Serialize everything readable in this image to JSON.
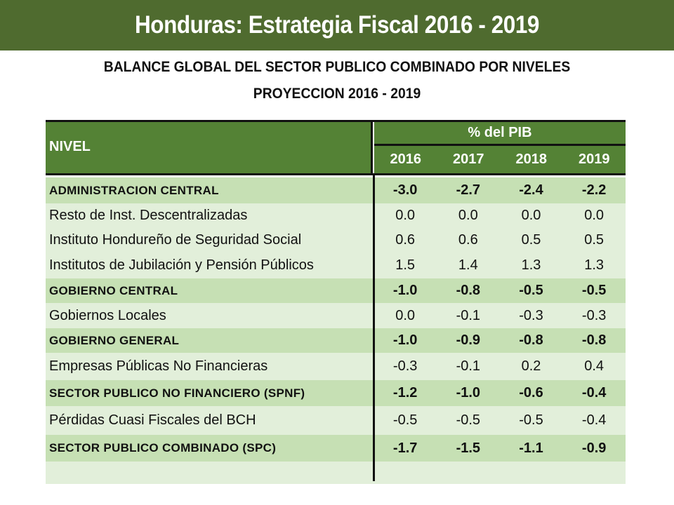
{
  "title": "Honduras: Estrategia Fiscal 2016 - 2019",
  "subtitle1": "BALANCE GLOBAL DEL SECTOR PUBLICO COMBINADO POR NIVELES",
  "subtitle2": "PROYECCION 2016 - 2019",
  "table": {
    "level_header": "NIVEL",
    "pib_header": "% del PIB",
    "years": [
      "2016",
      "2017",
      "2018",
      "2019"
    ],
    "rows": [
      {
        "label": "ADMINISTRACION CENTRAL",
        "bold": true,
        "values": [
          "-3.0",
          "-2.7",
          "-2.4",
          "-2.2"
        ]
      },
      {
        "label": "Resto de Inst. Descentralizadas",
        "bold": false,
        "values": [
          "0.0",
          "0.0",
          "0.0",
          "0.0"
        ]
      },
      {
        "label": "Instituto Hondureño de Seguridad Social",
        "bold": false,
        "values": [
          "0.6",
          "0.6",
          "0.5",
          "0.5"
        ]
      },
      {
        "label": "Institutos de Jubilación y Pensión Públicos",
        "bold": false,
        "values": [
          "1.5",
          "1.4",
          "1.3",
          "1.3"
        ]
      },
      {
        "label": "GOBIERNO CENTRAL",
        "bold": true,
        "values": [
          "-1.0",
          "-0.8",
          "-0.5",
          "-0.5"
        ]
      },
      {
        "label": "Gobiernos Locales",
        "bold": false,
        "values": [
          "0.0",
          "-0.1",
          "-0.3",
          "-0.3"
        ]
      },
      {
        "label": "GOBIERNO GENERAL",
        "bold": true,
        "values": [
          "-1.0",
          "-0.9",
          "-0.8",
          "-0.8"
        ]
      },
      {
        "label": "Empresas Públicas No Financieras",
        "bold": false,
        "values": [
          "-0.3",
          "-0.1",
          "0.2",
          "0.4"
        ]
      },
      {
        "label": "SECTOR PUBLICO NO FINANCIERO (SPNF)",
        "bold": true,
        "values": [
          "-1.2",
          "-1.0",
          "-0.6",
          "-0.4"
        ]
      },
      {
        "label": "Pérdidas Cuasi Fiscales del BCH",
        "bold": false,
        "values": [
          "-0.5",
          "-0.5",
          "-0.5",
          "-0.4"
        ]
      },
      {
        "label": "SECTOR PUBLICO COMBINADO (SPC)",
        "bold": true,
        "values": [
          "-1.7",
          "-1.5",
          "-1.1",
          "-0.9"
        ]
      },
      {
        "label": "",
        "bold": false,
        "values": [
          "",
          "",
          "",
          ""
        ]
      }
    ]
  }
}
